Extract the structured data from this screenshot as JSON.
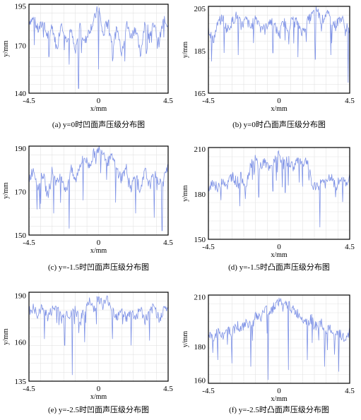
{
  "figure": {
    "panels": [
      {
        "id": "a",
        "caption": "(a) y=0时凹面声压级分布图"
      },
      {
        "id": "b",
        "caption": "(b) y=0时凸面声压级分布图"
      },
      {
        "id": "c",
        "caption": "(c) y=-1.5时凹面声压级分布图"
      },
      {
        "id": "d",
        "caption": "(d) y=-1.5时凸面声压级分布图"
      },
      {
        "id": "e",
        "caption": "(e) y=-2.5时凹面声压级分布图"
      },
      {
        "id": "f",
        "caption": "(f) y=-2.5时凸面声压级分布图"
      }
    ]
  },
  "style": {
    "line_color": "#7f93e6",
    "grid_color": "#e3e3e3",
    "frame_color": "#000000"
  },
  "chart_data": [
    {
      "type": "line",
      "xlabel": "x/mm",
      "ylabel": "y/mm",
      "xlim": [
        -4.5,
        4.5
      ],
      "ylim": [
        140,
        196
      ],
      "x_ticks": [
        "-4.5",
        "0",
        "4.5"
      ],
      "y_ticks": [
        "195",
        "170",
        "140"
      ],
      "x_tick_values": [
        -4.5,
        0,
        4.5
      ],
      "y_tick_values": [
        195,
        170,
        140
      ],
      "grid": true,
      "x": [
        -4.5,
        -4.2,
        -3.9,
        -3.6,
        -3.3,
        -3.0,
        -2.7,
        -2.4,
        -2.1,
        -1.8,
        -1.5,
        -1.2,
        -0.9,
        -0.6,
        -0.3,
        0.0,
        0.3,
        0.6,
        0.9,
        1.2,
        1.5,
        1.8,
        2.1,
        2.4,
        2.7,
        3.0,
        3.3,
        3.6,
        3.9,
        4.2,
        4.5
      ],
      "y": [
        186,
        187,
        180,
        185,
        176,
        183,
        168,
        186,
        174,
        181,
        165,
        184,
        172,
        180,
        186,
        195,
        176,
        188,
        170,
        181,
        166,
        184,
        176,
        182,
        164,
        186,
        178,
        183,
        172,
        186,
        184
      ],
      "dips": [
        {
          "x": -3.2,
          "y": 163
        },
        {
          "x": -1.9,
          "y": 158
        },
        {
          "x": -1.3,
          "y": 143
        },
        {
          "x": 0.0,
          "y": 155
        },
        {
          "x": 1.7,
          "y": 160
        },
        {
          "x": 3.1,
          "y": 165
        },
        {
          "x": 3.8,
          "y": 168
        }
      ]
    },
    {
      "type": "line",
      "xlabel": "x/mm",
      "ylabel": "y/mm",
      "xlim": [
        -4.5,
        4.5
      ],
      "ylim": [
        165,
        206
      ],
      "x_ticks": [
        "-4.5",
        "0",
        "4.5"
      ],
      "y_ticks": [
        "205",
        "185",
        "165"
      ],
      "x_tick_values": [
        -4.5,
        0,
        4.5
      ],
      "y_tick_values": [
        205,
        185,
        165
      ],
      "grid": true,
      "x": [
        -4.5,
        -4.2,
        -3.9,
        -3.6,
        -3.3,
        -3.0,
        -2.7,
        -2.4,
        -2.1,
        -1.8,
        -1.5,
        -1.2,
        -0.9,
        -0.6,
        -0.3,
        0.0,
        0.3,
        0.6,
        0.9,
        1.2,
        1.5,
        1.8,
        2.1,
        2.4,
        2.7,
        3.0,
        3.3,
        3.6,
        3.9,
        4.2,
        4.5
      ],
      "y": [
        196,
        190,
        198,
        201,
        195,
        199,
        202,
        197,
        200,
        196,
        201,
        198,
        195,
        200,
        197,
        193,
        199,
        196,
        201,
        198,
        194,
        199,
        202,
        205,
        199,
        203,
        200,
        197,
        201,
        198,
        193
      ],
      "dips": [
        {
          "x": -4.3,
          "y": 180
        },
        {
          "x": -3.5,
          "y": 184
        },
        {
          "x": -2.6,
          "y": 183
        },
        {
          "x": -0.4,
          "y": 184
        },
        {
          "x": 1.2,
          "y": 182
        },
        {
          "x": 2.3,
          "y": 181
        },
        {
          "x": 3.3,
          "y": 183
        },
        {
          "x": 4.4,
          "y": 170
        }
      ]
    },
    {
      "type": "line",
      "xlabel": "x/mm",
      "ylabel": "y/mm",
      "xlim": [
        -4.5,
        4.5
      ],
      "ylim": [
        150,
        191
      ],
      "x_ticks": [
        "-4.5",
        "0",
        "4.5"
      ],
      "y_ticks": [
        "190",
        "170",
        "150"
      ],
      "x_tick_values": [
        -4.5,
        0,
        4.5
      ],
      "y_tick_values": [
        190,
        170,
        150
      ],
      "grid": true,
      "x": [
        -4.5,
        -4.2,
        -3.9,
        -3.6,
        -3.3,
        -3.0,
        -2.7,
        -2.4,
        -2.1,
        -1.8,
        -1.5,
        -1.2,
        -0.9,
        -0.6,
        -0.3,
        0.0,
        0.3,
        0.6,
        0.9,
        1.2,
        1.5,
        1.8,
        2.1,
        2.4,
        2.7,
        3.0,
        3.3,
        3.6,
        3.9,
        4.2,
        4.5
      ],
      "y": [
        176,
        181,
        172,
        179,
        168,
        180,
        174,
        178,
        170,
        181,
        175,
        183,
        186,
        182,
        188,
        190,
        189,
        184,
        186,
        180,
        177,
        181,
        172,
        179,
        169,
        180,
        173,
        178,
        175,
        177,
        181
      ],
      "dips": [
        {
          "x": -3.8,
          "y": 162
        },
        {
          "x": -2.9,
          "y": 160
        },
        {
          "x": -1.9,
          "y": 153
        },
        {
          "x": -1.0,
          "y": 166
        },
        {
          "x": 1.1,
          "y": 165
        },
        {
          "x": 2.4,
          "y": 160
        },
        {
          "x": 3.6,
          "y": 158
        },
        {
          "x": 4.1,
          "y": 152
        }
      ]
    },
    {
      "type": "line",
      "xlabel": "x/mm",
      "ylabel": "y/mm",
      "xlim": [
        -4.5,
        4.5
      ],
      "ylim": [
        150,
        211
      ],
      "x_ticks": [
        "-4.5",
        "0",
        "4.5"
      ],
      "y_ticks": [
        "210",
        "180",
        "150"
      ],
      "x_tick_values": [
        -4.5,
        0,
        4.5
      ],
      "y_tick_values": [
        210,
        180,
        150
      ],
      "grid": true,
      "x": [
        -4.5,
        -4.2,
        -3.9,
        -3.6,
        -3.3,
        -3.0,
        -2.7,
        -2.4,
        -2.1,
        -1.8,
        -1.5,
        -1.2,
        -0.9,
        -0.6,
        -0.3,
        0.0,
        0.3,
        0.6,
        0.9,
        1.2,
        1.5,
        1.8,
        2.1,
        2.4,
        2.7,
        3.0,
        3.3,
        3.6,
        3.9,
        4.2,
        4.5
      ],
      "y": [
        185,
        189,
        183,
        191,
        186,
        194,
        188,
        192,
        186,
        201,
        203,
        199,
        202,
        196,
        204,
        207,
        200,
        203,
        198,
        204,
        201,
        203,
        186,
        184,
        190,
        187,
        192,
        185,
        190,
        188,
        191
      ],
      "dips": [
        {
          "x": -3.7,
          "y": 176
        },
        {
          "x": -2.5,
          "y": 172
        },
        {
          "x": -1.3,
          "y": 178
        },
        {
          "x": -0.4,
          "y": 182
        },
        {
          "x": 0.4,
          "y": 181
        },
        {
          "x": 1.5,
          "y": 185
        },
        {
          "x": 2.6,
          "y": 158
        },
        {
          "x": 3.6,
          "y": 178
        }
      ]
    },
    {
      "type": "line",
      "xlabel": "x/mm",
      "ylabel": "y/mm",
      "xlim": [
        -4.5,
        4.5
      ],
      "ylim": [
        135,
        192
      ],
      "x_ticks": [
        "-4.5",
        "0",
        "4.5"
      ],
      "y_ticks": [
        "190",
        "160",
        "135"
      ],
      "x_tick_values": [
        -4.5,
        0,
        4.5
      ],
      "y_tick_values": [
        190,
        160,
        135
      ],
      "grid": true,
      "x": [
        -4.5,
        -4.2,
        -3.9,
        -3.6,
        -3.3,
        -3.0,
        -2.7,
        -2.4,
        -2.1,
        -1.8,
        -1.5,
        -1.2,
        -0.9,
        -0.6,
        -0.3,
        0.0,
        0.3,
        0.6,
        0.9,
        1.2,
        1.5,
        1.8,
        2.1,
        2.4,
        2.7,
        3.0,
        3.3,
        3.6,
        3.9,
        4.2,
        4.5
      ],
      "y": [
        180,
        182,
        177,
        184,
        176,
        181,
        183,
        175,
        180,
        177,
        182,
        174,
        180,
        186,
        182,
        189,
        184,
        188,
        181,
        177,
        183,
        175,
        180,
        176,
        182,
        174,
        179,
        183,
        176,
        181,
        182
      ],
      "dips": [
        {
          "x": -3.5,
          "y": 162
        },
        {
          "x": -2.2,
          "y": 158
        },
        {
          "x": -1.7,
          "y": 139
        },
        {
          "x": -0.9,
          "y": 160
        },
        {
          "x": 0.9,
          "y": 162
        },
        {
          "x": 2.1,
          "y": 158
        },
        {
          "x": 3.3,
          "y": 161
        }
      ]
    },
    {
      "type": "line",
      "xlabel": "x/mm",
      "ylabel": "y/mm",
      "xlim": [
        -4.5,
        4.5
      ],
      "ylim": [
        158,
        211
      ],
      "x_ticks": [
        "-4.5",
        "0",
        "4.5"
      ],
      "y_ticks": [
        "210",
        "180",
        "160"
      ],
      "x_tick_values": [
        -4.5,
        0,
        4.5
      ],
      "y_tick_values": [
        210,
        180,
        160
      ],
      "grid": true,
      "x": [
        -4.5,
        -4.2,
        -3.9,
        -3.6,
        -3.3,
        -3.0,
        -2.7,
        -2.4,
        -2.1,
        -1.8,
        -1.5,
        -1.2,
        -0.9,
        -0.6,
        -0.3,
        0.0,
        0.3,
        0.6,
        0.9,
        1.2,
        1.5,
        1.8,
        2.1,
        2.4,
        2.7,
        3.0,
        3.3,
        3.6,
        3.9,
        4.2,
        4.5
      ],
      "y": [
        188,
        184,
        190,
        186,
        192,
        188,
        194,
        190,
        196,
        193,
        199,
        197,
        203,
        201,
        205,
        208,
        204,
        206,
        202,
        200,
        198,
        195,
        197,
        192,
        194,
        189,
        191,
        186,
        188,
        184,
        190
      ],
      "dips": [
        {
          "x": -3.9,
          "y": 172
        },
        {
          "x": -3.0,
          "y": 170
        },
        {
          "x": -1.8,
          "y": 168
        },
        {
          "x": -0.7,
          "y": 160
        },
        {
          "x": 0.6,
          "y": 166
        },
        {
          "x": 1.8,
          "y": 172
        },
        {
          "x": 2.9,
          "y": 168
        },
        {
          "x": 3.8,
          "y": 165
        }
      ]
    }
  ]
}
